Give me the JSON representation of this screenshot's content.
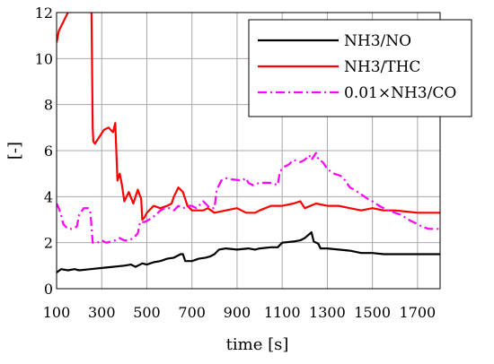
{
  "chart_data": {
    "type": "line",
    "title": "",
    "xlabel": "time [s]",
    "ylabel": "[-]",
    "xlim": [
      100,
      1800
    ],
    "ylim": [
      0,
      12
    ],
    "xticks": [
      "100",
      "300",
      "500",
      "700",
      "900",
      "1100",
      "1300",
      "1500",
      "1700"
    ],
    "yticks": [
      "0",
      "2",
      "4",
      "6",
      "8",
      "10",
      "12"
    ],
    "grid": true,
    "legend_position": "top-right",
    "series": [
      {
        "name": "NH3/NO",
        "color": "#000000",
        "dash": "solid",
        "points": [
          [
            100,
            0.7
          ],
          [
            120,
            0.85
          ],
          [
            150,
            0.8
          ],
          [
            180,
            0.85
          ],
          [
            200,
            0.8
          ],
          [
            250,
            0.85
          ],
          [
            300,
            0.9
          ],
          [
            350,
            0.95
          ],
          [
            400,
            1.0
          ],
          [
            430,
            1.05
          ],
          [
            450,
            0.95
          ],
          [
            480,
            1.1
          ],
          [
            500,
            1.05
          ],
          [
            530,
            1.15
          ],
          [
            560,
            1.2
          ],
          [
            590,
            1.3
          ],
          [
            620,
            1.35
          ],
          [
            650,
            1.5
          ],
          [
            660,
            1.5
          ],
          [
            670,
            1.2
          ],
          [
            700,
            1.2
          ],
          [
            730,
            1.3
          ],
          [
            760,
            1.35
          ],
          [
            780,
            1.4
          ],
          [
            800,
            1.5
          ],
          [
            820,
            1.7
          ],
          [
            850,
            1.75
          ],
          [
            900,
            1.7
          ],
          [
            950,
            1.75
          ],
          [
            980,
            1.7
          ],
          [
            1000,
            1.75
          ],
          [
            1050,
            1.8
          ],
          [
            1080,
            1.8
          ],
          [
            1100,
            2.0
          ],
          [
            1150,
            2.05
          ],
          [
            1180,
            2.1
          ],
          [
            1200,
            2.2
          ],
          [
            1230,
            2.45
          ],
          [
            1240,
            2.05
          ],
          [
            1260,
            1.95
          ],
          [
            1270,
            1.75
          ],
          [
            1300,
            1.75
          ],
          [
            1350,
            1.7
          ],
          [
            1400,
            1.65
          ],
          [
            1450,
            1.55
          ],
          [
            1500,
            1.55
          ],
          [
            1550,
            1.5
          ],
          [
            1600,
            1.5
          ],
          [
            1700,
            1.5
          ],
          [
            1800,
            1.5
          ]
        ]
      },
      {
        "name": "NH3/THC",
        "color": "#ff0000",
        "dash": "solid",
        "points": [
          [
            100,
            10.7
          ],
          [
            110,
            11.2
          ],
          [
            130,
            11.6
          ],
          [
            150,
            12.0
          ],
          [
            170,
            12.6
          ],
          [
            250,
            12.6
          ],
          [
            255,
            12.0
          ],
          [
            260,
            7.0
          ],
          [
            263,
            6.4
          ],
          [
            270,
            6.3
          ],
          [
            290,
            6.6
          ],
          [
            310,
            6.9
          ],
          [
            330,
            7.0
          ],
          [
            350,
            6.8
          ],
          [
            360,
            7.2
          ],
          [
            370,
            4.7
          ],
          [
            380,
            5.0
          ],
          [
            390,
            4.5
          ],
          [
            400,
            3.8
          ],
          [
            420,
            4.2
          ],
          [
            440,
            3.7
          ],
          [
            460,
            4.3
          ],
          [
            475,
            3.9
          ],
          [
            480,
            3.0
          ],
          [
            490,
            3.1
          ],
          [
            500,
            3.3
          ],
          [
            530,
            3.6
          ],
          [
            560,
            3.5
          ],
          [
            590,
            3.6
          ],
          [
            610,
            3.7
          ],
          [
            620,
            4.0
          ],
          [
            640,
            4.4
          ],
          [
            660,
            4.2
          ],
          [
            680,
            3.6
          ],
          [
            700,
            3.4
          ],
          [
            750,
            3.4
          ],
          [
            770,
            3.5
          ],
          [
            800,
            3.3
          ],
          [
            850,
            3.4
          ],
          [
            900,
            3.5
          ],
          [
            940,
            3.3
          ],
          [
            980,
            3.3
          ],
          [
            1000,
            3.4
          ],
          [
            1050,
            3.6
          ],
          [
            1100,
            3.6
          ],
          [
            1150,
            3.7
          ],
          [
            1180,
            3.8
          ],
          [
            1200,
            3.5
          ],
          [
            1250,
            3.7
          ],
          [
            1300,
            3.6
          ],
          [
            1350,
            3.6
          ],
          [
            1400,
            3.5
          ],
          [
            1450,
            3.4
          ],
          [
            1500,
            3.5
          ],
          [
            1550,
            3.4
          ],
          [
            1600,
            3.4
          ],
          [
            1650,
            3.35
          ],
          [
            1700,
            3.3
          ],
          [
            1750,
            3.3
          ],
          [
            1800,
            3.3
          ]
        ]
      },
      {
        "name": "0.01×NH3/CO",
        "color": "#ff00ff",
        "dash": "dashdot",
        "points": [
          [
            100,
            3.7
          ],
          [
            110,
            3.5
          ],
          [
            120,
            3.2
          ],
          [
            130,
            2.8
          ],
          [
            150,
            2.6
          ],
          [
            170,
            2.6
          ],
          [
            190,
            2.7
          ],
          [
            200,
            3.2
          ],
          [
            220,
            3.5
          ],
          [
            240,
            3.5
          ],
          [
            250,
            3.3
          ],
          [
            260,
            2.0
          ],
          [
            280,
            2.0
          ],
          [
            300,
            2.1
          ],
          [
            320,
            2.0
          ],
          [
            360,
            2.1
          ],
          [
            380,
            2.2
          ],
          [
            400,
            2.1
          ],
          [
            420,
            2.1
          ],
          [
            440,
            2.2
          ],
          [
            460,
            2.4
          ],
          [
            470,
            2.9
          ],
          [
            490,
            2.9
          ],
          [
            510,
            3.0
          ],
          [
            540,
            3.2
          ],
          [
            560,
            3.4
          ],
          [
            580,
            3.5
          ],
          [
            600,
            3.5
          ],
          [
            620,
            3.4
          ],
          [
            640,
            3.6
          ],
          [
            660,
            3.5
          ],
          [
            690,
            3.6
          ],
          [
            700,
            3.6
          ],
          [
            720,
            3.5
          ],
          [
            750,
            3.8
          ],
          [
            780,
            3.5
          ],
          [
            800,
            3.5
          ],
          [
            810,
            4.3
          ],
          [
            830,
            4.7
          ],
          [
            850,
            4.8
          ],
          [
            880,
            4.75
          ],
          [
            920,
            4.7
          ],
          [
            940,
            4.8
          ],
          [
            950,
            4.6
          ],
          [
            970,
            4.5
          ],
          [
            1000,
            4.6
          ],
          [
            1050,
            4.6
          ],
          [
            1080,
            4.5
          ],
          [
            1090,
            5.1
          ],
          [
            1110,
            5.3
          ],
          [
            1130,
            5.4
          ],
          [
            1150,
            5.6
          ],
          [
            1180,
            5.5
          ],
          [
            1200,
            5.6
          ],
          [
            1220,
            5.8
          ],
          [
            1230,
            5.6
          ],
          [
            1250,
            5.9
          ],
          [
            1260,
            5.6
          ],
          [
            1280,
            5.5
          ],
          [
            1300,
            5.2
          ],
          [
            1330,
            5.0
          ],
          [
            1360,
            4.9
          ],
          [
            1380,
            4.7
          ],
          [
            1400,
            4.4
          ],
          [
            1420,
            4.3
          ],
          [
            1450,
            4.1
          ],
          [
            1480,
            3.9
          ],
          [
            1500,
            3.8
          ],
          [
            1530,
            3.6
          ],
          [
            1570,
            3.4
          ],
          [
            1600,
            3.3
          ],
          [
            1630,
            3.2
          ],
          [
            1660,
            3.0
          ],
          [
            1700,
            2.8
          ],
          [
            1720,
            2.7
          ],
          [
            1750,
            2.6
          ],
          [
            1800,
            2.6
          ]
        ]
      }
    ]
  }
}
